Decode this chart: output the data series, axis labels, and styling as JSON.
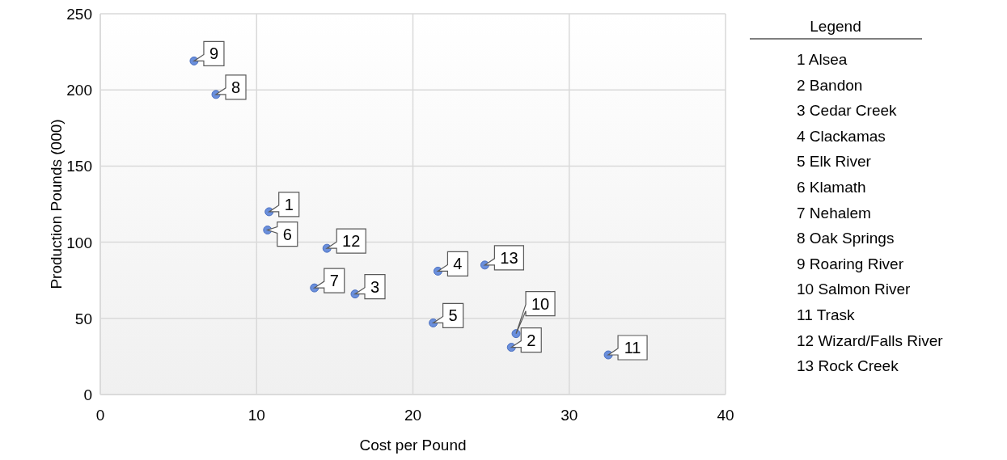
{
  "chart_data": {
    "type": "scatter",
    "xlabel": "Cost per Pound",
    "ylabel": "Production Pounds (000)",
    "x": [
      10.8,
      26.3,
      16.3,
      21.6,
      21.3,
      10.7,
      13.7,
      7.4,
      6.0,
      26.6,
      32.5,
      14.5,
      24.6
    ],
    "series": [
      {
        "color": "#6a8fdc",
        "values": [
          120,
          31,
          66,
          81,
          47,
          108,
          70,
          197,
          219,
          40,
          26,
          96,
          85
        ]
      }
    ],
    "xlim": [
      0,
      40
    ],
    "xticks": [
      0,
      10,
      20,
      30,
      40
    ],
    "ylim": [
      0,
      250
    ],
    "yticks": [
      0,
      50,
      100,
      150,
      200,
      250
    ],
    "grid": true,
    "marker": "circle",
    "legend_title": "Legend",
    "annotations": [
      {
        "text": "1",
        "x": 10.8,
        "y": 120
      },
      {
        "text": "2",
        "x": 26.3,
        "y": 31
      },
      {
        "text": "3",
        "x": 16.3,
        "y": 66
      },
      {
        "text": "4",
        "x": 21.6,
        "y": 81
      },
      {
        "text": "5",
        "x": 21.3,
        "y": 47
      },
      {
        "text": "6",
        "x": 10.7,
        "y": 108
      },
      {
        "text": "7",
        "x": 13.7,
        "y": 70
      },
      {
        "text": "8",
        "x": 7.4,
        "y": 197
      },
      {
        "text": "9",
        "x": 6.0,
        "y": 219
      },
      {
        "text": "10",
        "x": 26.6,
        "y": 40
      },
      {
        "text": "11",
        "x": 32.5,
        "y": 26
      },
      {
        "text": "12",
        "x": 14.5,
        "y": 96
      },
      {
        "text": "13",
        "x": 24.6,
        "y": 85
      },
      "1 Alsea",
      "2 Bandon",
      "3 Cedar Creek",
      "4 Clackamas",
      "5 Elk River",
      "6 Klamath",
      "7 Nehalem",
      "8 Oak Springs",
      "9 Roaring River",
      "10 Salmon River",
      "11 Trask",
      "12 Wizard/Falls River",
      "13 Rock Creek"
    ]
  }
}
